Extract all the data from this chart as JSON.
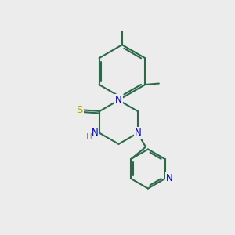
{
  "bg_color": "#ececec",
  "bond_color": "#2a6a4a",
  "N_color": "#0000cc",
  "S_color": "#aaaa00",
  "H_color": "#888888",
  "line_width": 1.5,
  "font_size_atom": 8.5,
  "fig_size": [
    3.0,
    3.0
  ],
  "dpi": 100,
  "xlim": [
    0,
    10
  ],
  "ylim": [
    0,
    10
  ]
}
